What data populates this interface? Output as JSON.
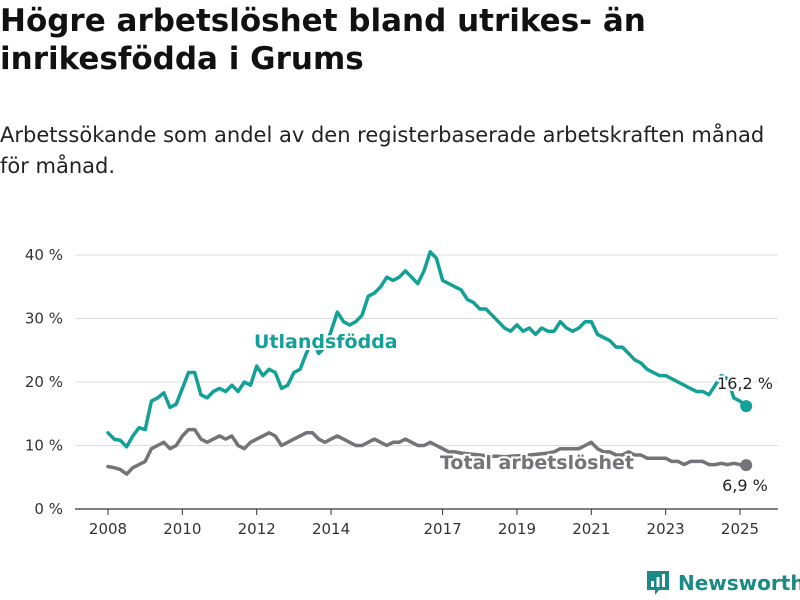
{
  "header": {
    "title": "Högre arbetslöshet bland utrikes- än inrikesfödda i Grums",
    "subtitle": "Arbetssökande som andel av den registerbaserade arbetskraften månad för månad."
  },
  "brand": {
    "name": "Newsworthy"
  },
  "colors": {
    "foreign": "#13a096",
    "total": "#737378",
    "grid": "#dddddd"
  },
  "chart_data": {
    "type": "line",
    "ylim": [
      0,
      40
    ],
    "y_ticks": [
      0,
      10,
      20,
      30,
      40
    ],
    "y_tick_labels": [
      "0 %",
      "10 %",
      "20 %",
      "30 %",
      "40 %"
    ],
    "x_ticks": [
      "2008",
      "2010",
      "2012",
      "2014",
      "2017",
      "2019",
      "2021",
      "2023",
      "2025"
    ],
    "x_range": [
      "2008-01",
      "2025-03"
    ],
    "grid": true,
    "series": [
      {
        "name": "Utlandsfödda",
        "last_label": "16,2 %",
        "values": [
          [
            "2008-01",
            12.0
          ],
          [
            "2008-03",
            11.0
          ],
          [
            "2008-05",
            10.8
          ],
          [
            "2008-07",
            9.8
          ],
          [
            "2008-09",
            11.5
          ],
          [
            "2008-11",
            12.8
          ],
          [
            "2009-01",
            12.5
          ],
          [
            "2009-03",
            17.0
          ],
          [
            "2009-05",
            17.5
          ],
          [
            "2009-07",
            18.3
          ],
          [
            "2009-09",
            16.0
          ],
          [
            "2009-11",
            16.5
          ],
          [
            "2010-01",
            19.0
          ],
          [
            "2010-03",
            21.5
          ],
          [
            "2010-05",
            21.5
          ],
          [
            "2010-07",
            18.0
          ],
          [
            "2010-09",
            17.5
          ],
          [
            "2010-11",
            18.5
          ],
          [
            "2011-01",
            19.0
          ],
          [
            "2011-03",
            18.5
          ],
          [
            "2011-05",
            19.5
          ],
          [
            "2011-07",
            18.5
          ],
          [
            "2011-09",
            20.0
          ],
          [
            "2011-11",
            19.5
          ],
          [
            "2012-01",
            22.5
          ],
          [
            "2012-03",
            21.0
          ],
          [
            "2012-05",
            22.0
          ],
          [
            "2012-07",
            21.5
          ],
          [
            "2012-09",
            19.0
          ],
          [
            "2012-11",
            19.5
          ],
          [
            "2013-01",
            21.5
          ],
          [
            "2013-03",
            22.0
          ],
          [
            "2013-05",
            24.5
          ],
          [
            "2013-07",
            26.5
          ],
          [
            "2013-09",
            24.5
          ],
          [
            "2013-11",
            25.5
          ],
          [
            "2014-01",
            28.0
          ],
          [
            "2014-03",
            31.0
          ],
          [
            "2014-05",
            29.5
          ],
          [
            "2014-07",
            29.0
          ],
          [
            "2014-09",
            29.5
          ],
          [
            "2014-11",
            30.5
          ],
          [
            "2015-01",
            33.5
          ],
          [
            "2015-03",
            34.0
          ],
          [
            "2015-05",
            35.0
          ],
          [
            "2015-07",
            36.5
          ],
          [
            "2015-09",
            36.0
          ],
          [
            "2015-11",
            36.5
          ],
          [
            "2016-01",
            37.5
          ],
          [
            "2016-03",
            36.5
          ],
          [
            "2016-05",
            35.5
          ],
          [
            "2016-07",
            37.5
          ],
          [
            "2016-09",
            40.5
          ],
          [
            "2016-11",
            39.5
          ],
          [
            "2017-01",
            36.0
          ],
          [
            "2017-03",
            35.5
          ],
          [
            "2017-05",
            35.0
          ],
          [
            "2017-07",
            34.5
          ],
          [
            "2017-09",
            33.0
          ],
          [
            "2017-11",
            32.5
          ],
          [
            "2018-01",
            31.5
          ],
          [
            "2018-03",
            31.5
          ],
          [
            "2018-05",
            30.5
          ],
          [
            "2018-07",
            29.5
          ],
          [
            "2018-09",
            28.5
          ],
          [
            "2018-11",
            28.0
          ],
          [
            "2019-01",
            29.0
          ],
          [
            "2019-03",
            28.0
          ],
          [
            "2019-05",
            28.5
          ],
          [
            "2019-07",
            27.5
          ],
          [
            "2019-09",
            28.5
          ],
          [
            "2019-11",
            28.0
          ],
          [
            "2020-01",
            28.0
          ],
          [
            "2020-03",
            29.5
          ],
          [
            "2020-05",
            28.5
          ],
          [
            "2020-07",
            28.0
          ],
          [
            "2020-09",
            28.5
          ],
          [
            "2020-11",
            29.5
          ],
          [
            "2021-01",
            29.5
          ],
          [
            "2021-03",
            27.5
          ],
          [
            "2021-05",
            27.0
          ],
          [
            "2021-07",
            26.5
          ],
          [
            "2021-09",
            25.5
          ],
          [
            "2021-11",
            25.5
          ],
          [
            "2022-01",
            24.5
          ],
          [
            "2022-03",
            23.5
          ],
          [
            "2022-05",
            23.0
          ],
          [
            "2022-07",
            22.0
          ],
          [
            "2022-09",
            21.5
          ],
          [
            "2022-11",
            21.0
          ],
          [
            "2023-01",
            21.0
          ],
          [
            "2023-03",
            20.5
          ],
          [
            "2023-05",
            20.0
          ],
          [
            "2023-07",
            19.5
          ],
          [
            "2023-09",
            19.0
          ],
          [
            "2023-11",
            18.5
          ],
          [
            "2024-01",
            18.5
          ],
          [
            "2024-03",
            18.0
          ],
          [
            "2024-05",
            19.5
          ],
          [
            "2024-07",
            21.0
          ],
          [
            "2024-09",
            20.5
          ],
          [
            "2024-11",
            17.5
          ],
          [
            "2025-01",
            17.0
          ],
          [
            "2025-03",
            16.2
          ]
        ]
      },
      {
        "name": "Total arbetslöshet",
        "last_label": "6,9 %",
        "values": [
          [
            "2008-01",
            6.7
          ],
          [
            "2008-03",
            6.5
          ],
          [
            "2008-05",
            6.2
          ],
          [
            "2008-07",
            5.5
          ],
          [
            "2008-09",
            6.5
          ],
          [
            "2008-11",
            7.0
          ],
          [
            "2009-01",
            7.5
          ],
          [
            "2009-03",
            9.5
          ],
          [
            "2009-05",
            10.0
          ],
          [
            "2009-07",
            10.5
          ],
          [
            "2009-09",
            9.5
          ],
          [
            "2009-11",
            10.0
          ],
          [
            "2010-01",
            11.5
          ],
          [
            "2010-03",
            12.5
          ],
          [
            "2010-05",
            12.5
          ],
          [
            "2010-07",
            11.0
          ],
          [
            "2010-09",
            10.5
          ],
          [
            "2010-11",
            11.0
          ],
          [
            "2011-01",
            11.5
          ],
          [
            "2011-03",
            11.0
          ],
          [
            "2011-05",
            11.5
          ],
          [
            "2011-07",
            10.0
          ],
          [
            "2011-09",
            9.5
          ],
          [
            "2011-11",
            10.5
          ],
          [
            "2012-01",
            11.0
          ],
          [
            "2012-03",
            11.5
          ],
          [
            "2012-05",
            12.0
          ],
          [
            "2012-07",
            11.5
          ],
          [
            "2012-09",
            10.0
          ],
          [
            "2012-11",
            10.5
          ],
          [
            "2013-01",
            11.0
          ],
          [
            "2013-03",
            11.5
          ],
          [
            "2013-05",
            12.0
          ],
          [
            "2013-07",
            12.0
          ],
          [
            "2013-09",
            11.0
          ],
          [
            "2013-11",
            10.5
          ],
          [
            "2014-01",
            11.0
          ],
          [
            "2014-03",
            11.5
          ],
          [
            "2014-05",
            11.0
          ],
          [
            "2014-07",
            10.5
          ],
          [
            "2014-09",
            10.0
          ],
          [
            "2014-11",
            10.0
          ],
          [
            "2015-01",
            10.5
          ],
          [
            "2015-03",
            11.0
          ],
          [
            "2015-05",
            10.5
          ],
          [
            "2015-07",
            10.0
          ],
          [
            "2015-09",
            10.5
          ],
          [
            "2015-11",
            10.5
          ],
          [
            "2016-01",
            11.0
          ],
          [
            "2016-03",
            10.5
          ],
          [
            "2016-05",
            10.0
          ],
          [
            "2016-07",
            10.0
          ],
          [
            "2016-09",
            10.5
          ],
          [
            "2016-11",
            10.0
          ],
          [
            "2017-01",
            9.5
          ],
          [
            "2017-03",
            9.0
          ],
          [
            "2017-05",
            9.0
          ],
          [
            "2017-07",
            8.8
          ],
          [
            "2017-09",
            8.7
          ],
          [
            "2017-11",
            8.6
          ],
          [
            "2018-01",
            8.5
          ],
          [
            "2018-03",
            8.4
          ],
          [
            "2018-05",
            8.3
          ],
          [
            "2018-07",
            8.3
          ],
          [
            "2018-09",
            8.2
          ],
          [
            "2018-11",
            8.3
          ],
          [
            "2019-01",
            8.4
          ],
          [
            "2019-03",
            8.4
          ],
          [
            "2019-05",
            8.5
          ],
          [
            "2019-07",
            8.6
          ],
          [
            "2019-09",
            8.7
          ],
          [
            "2019-11",
            8.8
          ],
          [
            "2020-01",
            9.0
          ],
          [
            "2020-03",
            9.5
          ],
          [
            "2020-05",
            9.5
          ],
          [
            "2020-07",
            9.5
          ],
          [
            "2020-09",
            9.5
          ],
          [
            "2020-11",
            10.0
          ],
          [
            "2021-01",
            10.5
          ],
          [
            "2021-03",
            9.5
          ],
          [
            "2021-05",
            9.0
          ],
          [
            "2021-07",
            9.0
          ],
          [
            "2021-09",
            8.5
          ],
          [
            "2021-11",
            8.5
          ],
          [
            "2022-01",
            9.0
          ],
          [
            "2022-03",
            8.5
          ],
          [
            "2022-05",
            8.5
          ],
          [
            "2022-07",
            8.0
          ],
          [
            "2022-09",
            8.0
          ],
          [
            "2022-11",
            8.0
          ],
          [
            "2023-01",
            8.0
          ],
          [
            "2023-03",
            7.5
          ],
          [
            "2023-05",
            7.5
          ],
          [
            "2023-07",
            7.0
          ],
          [
            "2023-09",
            7.5
          ],
          [
            "2023-11",
            7.5
          ],
          [
            "2024-01",
            7.5
          ],
          [
            "2024-03",
            7.0
          ],
          [
            "2024-05",
            7.0
          ],
          [
            "2024-07",
            7.2
          ],
          [
            "2024-09",
            7.0
          ],
          [
            "2024-11",
            7.2
          ],
          [
            "2025-01",
            7.0
          ],
          [
            "2025-03",
            6.9
          ]
        ]
      }
    ]
  }
}
